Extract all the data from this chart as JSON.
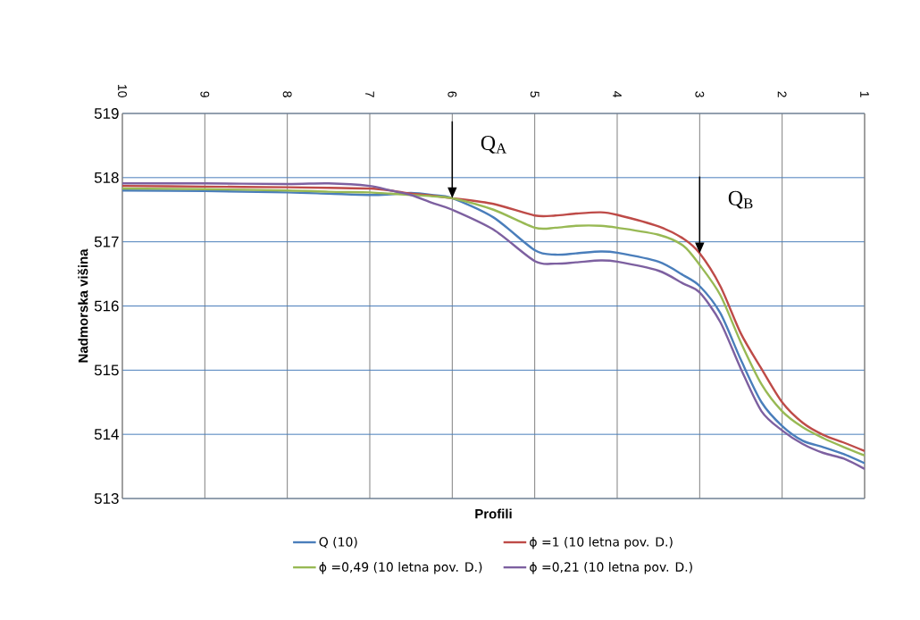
{
  "chart_data": {
    "type": "line",
    "xlabel": "Profili",
    "ylabel": "Nadmorska višina",
    "x": [
      10,
      9,
      8,
      7.5,
      7,
      6.75,
      6.5,
      6.25,
      6,
      5.5,
      5,
      4.75,
      4.5,
      4.2,
      4,
      3.5,
      3.2,
      3,
      2.75,
      2.5,
      2.25,
      2,
      1.75,
      1.5,
      1.25,
      1
    ],
    "xlim": [
      10,
      1
    ],
    "xticks": [
      10,
      9,
      8,
      7,
      6,
      5,
      4,
      3,
      2,
      1
    ],
    "ylim": [
      513,
      519
    ],
    "yticks": [
      513,
      514,
      515,
      516,
      517,
      518,
      519
    ],
    "grid": true,
    "legend": "bottom",
    "marker": "none",
    "line_style": "solid",
    "series": [
      {
        "name": "Q (10)",
        "color": "#4a7ebb",
        "values": [
          517.8,
          517.79,
          517.77,
          517.75,
          517.73,
          517.74,
          517.76,
          517.73,
          517.68,
          517.38,
          516.87,
          516.8,
          516.82,
          516.85,
          516.83,
          516.69,
          516.48,
          516.31,
          515.89,
          515.16,
          514.5,
          514.13,
          513.9,
          513.8,
          513.69,
          513.55
        ]
      },
      {
        "name": "ϕ =1 (10 letna pov. D.)",
        "color": "#be4b48",
        "values": [
          517.87,
          517.86,
          517.85,
          517.84,
          517.83,
          517.8,
          517.75,
          517.72,
          517.68,
          517.59,
          517.41,
          517.41,
          517.44,
          517.46,
          517.42,
          517.24,
          517.05,
          516.82,
          516.31,
          515.57,
          515.02,
          514.5,
          514.18,
          513.99,
          513.87,
          513.74
        ]
      },
      {
        "name": "ϕ =0,49 (10 letna pov. D.)",
        "color": "#98b954",
        "values": [
          517.83,
          517.82,
          517.8,
          517.78,
          517.77,
          517.75,
          517.73,
          517.71,
          517.68,
          517.5,
          517.22,
          517.22,
          517.25,
          517.25,
          517.22,
          517.11,
          516.94,
          516.64,
          516.17,
          515.43,
          514.78,
          514.36,
          514.11,
          513.94,
          513.8,
          513.67
        ]
      },
      {
        "name": "ϕ =0,21 (10 letna pov. D.)",
        "color": "#7d60a0",
        "values": [
          517.91,
          517.91,
          517.9,
          517.91,
          517.87,
          517.8,
          517.73,
          517.61,
          517.5,
          517.19,
          516.7,
          516.66,
          516.68,
          516.71,
          516.69,
          516.55,
          516.35,
          516.21,
          515.75,
          515.02,
          514.36,
          514.06,
          513.85,
          513.71,
          513.62,
          513.46
        ]
      }
    ],
    "annotations": [
      {
        "text": "Q$_{A}$",
        "x": 6,
        "y": 517.68
      },
      {
        "text": "Q$_{B}$",
        "x": 3,
        "y": 516.82
      }
    ]
  }
}
